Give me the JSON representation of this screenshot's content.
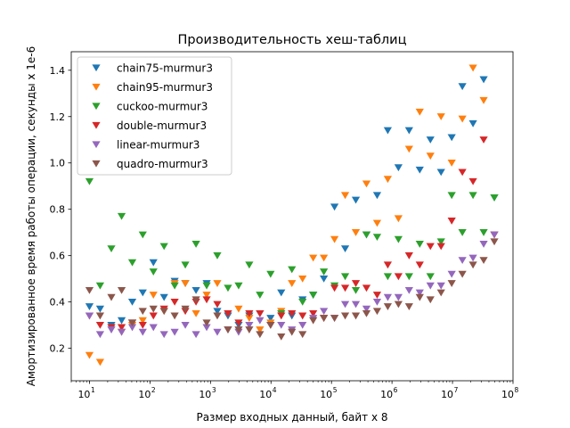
{
  "chart_data": {
    "type": "scatter",
    "title": "Производительность хеш-таблиц",
    "xlabel": "Размер входных данный, байт x 8",
    "ylabel": "Амортизированное время работы операции, секунды x 1e-6",
    "xscale": "log",
    "xlim": [
      5,
      100000000
    ],
    "ylim": [
      0.06,
      1.48
    ],
    "grid": false,
    "legend_position": "upper-left",
    "marker": "triangle-down",
    "x_ticks": [
      {
        "value": 10,
        "base": "10",
        "exp": "1"
      },
      {
        "value": 100,
        "base": "10",
        "exp": "2"
      },
      {
        "value": 1000,
        "base": "10",
        "exp": "3"
      },
      {
        "value": 10000,
        "base": "10",
        "exp": "4"
      },
      {
        "value": 100000,
        "base": "10",
        "exp": "5"
      },
      {
        "value": 1000000,
        "base": "10",
        "exp": "6"
      },
      {
        "value": 10000000,
        "base": "10",
        "exp": "7"
      },
      {
        "value": 100000000,
        "base": "10",
        "exp": "8"
      }
    ],
    "y_ticks": [
      {
        "value": 0.2,
        "label": "0.2"
      },
      {
        "value": 0.4,
        "label": "0.4"
      },
      {
        "value": 0.6,
        "label": "0.6"
      },
      {
        "value": 0.8,
        "label": "0.8"
      },
      {
        "value": 1.0,
        "label": "1.0"
      },
      {
        "value": 1.2,
        "label": "1.2"
      },
      {
        "value": 1.4,
        "label": "1.4"
      }
    ],
    "x": [
      10,
      15,
      23,
      34,
      51,
      76,
      114,
      171,
      256,
      384,
      577,
      865,
      1297,
      1946,
      2919,
      4378,
      6568,
      9852,
      14778,
      22168,
      33252,
      49878,
      74817,
      112226,
      168339,
      252508,
      378762,
      568144,
      852216,
      1278323,
      1917485,
      2876228,
      4314342,
      6471513,
      9707270,
      14560905,
      21841357,
      32762036,
      49143054
    ],
    "series": [
      {
        "name": "chain75-murmur3",
        "color": "#1f77b4",
        "values": [
          0.38,
          0.37,
          0.3,
          0.32,
          0.4,
          0.44,
          0.57,
          0.42,
          0.49,
          0.48,
          0.45,
          0.48,
          0.36,
          0.34,
          0.3,
          0.34,
          0.35,
          0.33,
          0.44,
          0.34,
          0.41,
          0.43,
          0.5,
          0.81,
          0.63,
          0.84,
          0.69,
          0.86,
          1.14,
          0.98,
          1.14,
          0.97,
          1.1,
          0.96,
          1.11,
          1.33,
          1.17,
          1.36,
          0.85
        ]
      },
      {
        "name": "chain95-murmur3",
        "color": "#ff7f0e",
        "values": [
          0.17,
          0.14,
          0.29,
          0.27,
          0.3,
          0.32,
          0.43,
          0.36,
          0.48,
          0.48,
          0.35,
          0.43,
          0.48,
          0.35,
          0.37,
          0.33,
          0.28,
          0.31,
          0.36,
          0.48,
          0.5,
          0.59,
          0.59,
          0.67,
          0.86,
          0.7,
          0.91,
          0.74,
          0.93,
          0.76,
          1.06,
          1.22,
          1.03,
          1.2,
          1.0,
          1.19,
          1.41,
          1.27,
          0.69
        ]
      },
      {
        "name": "cuckoo-murmur3",
        "color": "#2ca02c",
        "values": [
          0.92,
          0.47,
          0.63,
          0.77,
          0.57,
          0.69,
          0.53,
          0.64,
          0.47,
          0.56,
          0.65,
          0.47,
          0.6,
          0.46,
          0.47,
          0.56,
          0.43,
          0.52,
          0.35,
          0.54,
          0.4,
          0.43,
          0.53,
          0.47,
          0.51,
          0.45,
          0.69,
          0.68,
          0.51,
          0.67,
          0.51,
          0.65,
          0.51,
          0.66,
          0.86,
          0.7,
          0.86,
          0.7,
          0.85
        ]
      },
      {
        "name": "double-murmur3",
        "color": "#d62728",
        "values": [
          0.34,
          0.3,
          0.29,
          0.29,
          0.31,
          0.3,
          0.34,
          0.37,
          0.4,
          0.36,
          0.4,
          0.41,
          0.39,
          0.35,
          0.31,
          0.35,
          0.35,
          0.3,
          0.34,
          0.35,
          0.34,
          0.35,
          0.33,
          0.46,
          0.46,
          0.48,
          0.46,
          0.43,
          0.56,
          0.51,
          0.6,
          0.56,
          0.64,
          0.64,
          0.75,
          0.96,
          0.92,
          1.1,
          0.69
        ]
      },
      {
        "name": "linear-murmur3",
        "color": "#9467bd",
        "values": [
          0.34,
          0.26,
          0.28,
          0.27,
          0.29,
          0.27,
          0.29,
          0.26,
          0.27,
          0.3,
          0.26,
          0.29,
          0.27,
          0.28,
          0.27,
          0.3,
          0.32,
          0.3,
          0.3,
          0.28,
          0.3,
          0.33,
          0.36,
          0.33,
          0.39,
          0.39,
          0.37,
          0.4,
          0.42,
          0.42,
          0.45,
          0.44,
          0.47,
          0.47,
          0.52,
          0.58,
          0.59,
          0.65,
          0.69
        ]
      },
      {
        "name": "quadro-murmur3",
        "color": "#8c564b",
        "values": [
          0.45,
          0.34,
          0.42,
          0.45,
          0.31,
          0.36,
          0.37,
          0.36,
          0.34,
          0.37,
          0.41,
          0.31,
          0.34,
          0.28,
          0.28,
          0.28,
          0.26,
          0.3,
          0.25,
          0.27,
          0.26,
          0.32,
          0.33,
          0.33,
          0.34,
          0.34,
          0.35,
          0.36,
          0.38,
          0.39,
          0.38,
          0.42,
          0.41,
          0.44,
          0.48,
          0.52,
          0.56,
          0.58,
          0.66
        ]
      }
    ]
  }
}
